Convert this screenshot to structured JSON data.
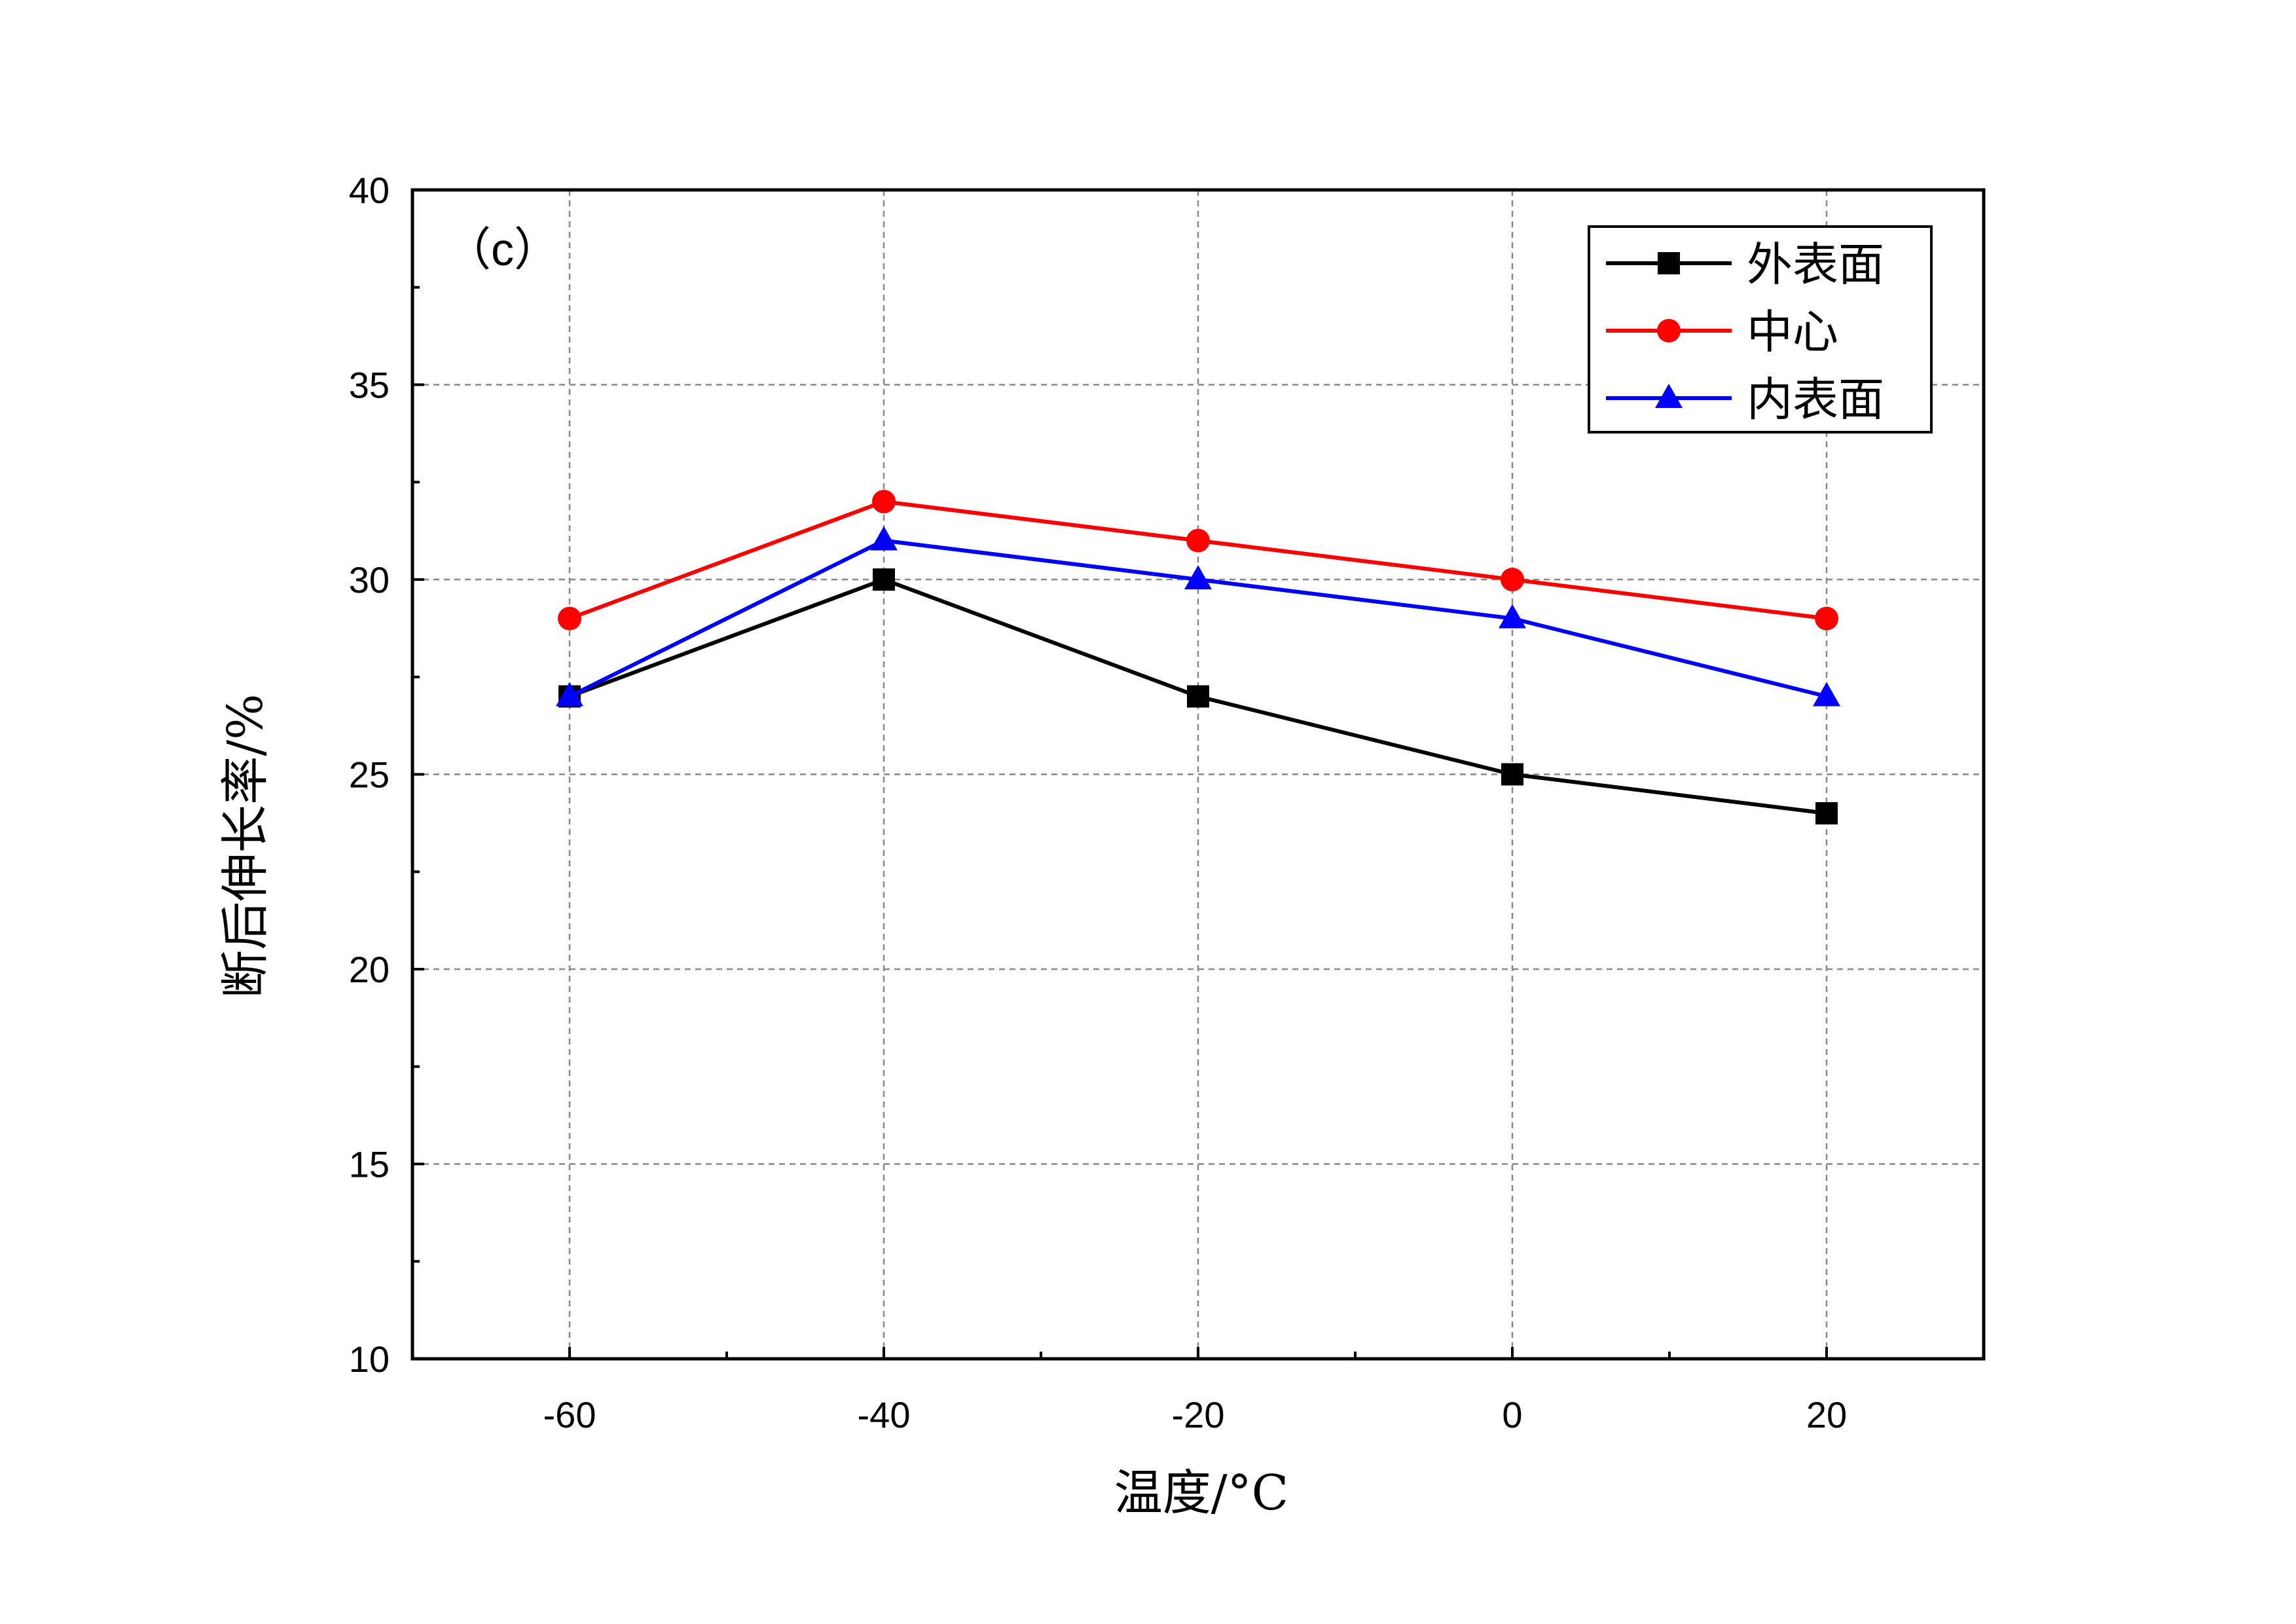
{
  "chart_data": {
    "type": "line",
    "panel_label": "（c）",
    "xlabel": "温度/°C",
    "ylabel": "断后伸长率/%",
    "x": [
      -60,
      -40,
      -20,
      0,
      20
    ],
    "xlim": [
      -70,
      30
    ],
    "ylim": [
      10,
      40
    ],
    "x_ticks": [
      -60,
      -40,
      -20,
      0,
      20
    ],
    "x_tick_labels": [
      "-60",
      "-40",
      "-20",
      "0",
      "20"
    ],
    "y_ticks": [
      10,
      15,
      20,
      25,
      30,
      35,
      40
    ],
    "y_tick_labels": [
      "10",
      "15",
      "20",
      "25",
      "30",
      "35",
      "40"
    ],
    "grid": true,
    "legend_position": "top-right",
    "series": [
      {
        "name": "外表面",
        "color": "#000000",
        "marker": "square",
        "values": [
          27,
          30,
          27,
          25,
          24
        ]
      },
      {
        "name": "中心",
        "color": "#ff0000",
        "marker": "circle",
        "values": [
          29,
          32,
          31,
          30,
          29
        ]
      },
      {
        "name": "内表面",
        "color": "#0000ff",
        "marker": "triangle",
        "values": [
          27,
          31,
          30,
          29,
          27
        ]
      }
    ]
  }
}
